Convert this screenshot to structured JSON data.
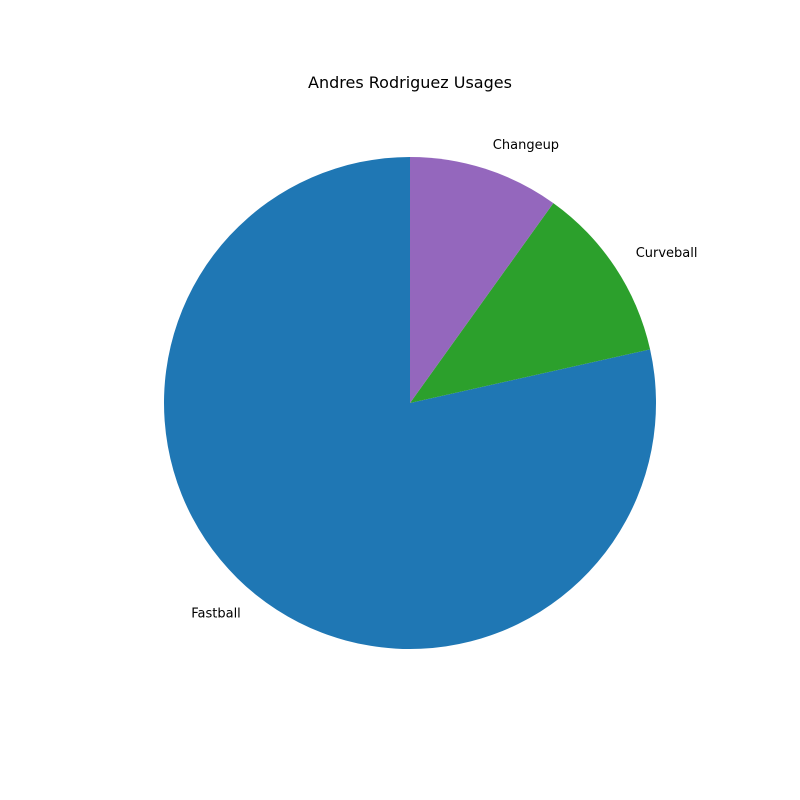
{
  "chart_data": {
    "type": "pie",
    "title": "Andres Rodriguez Usages",
    "start_angle_deg": 90,
    "direction": "counterclockwise",
    "legend": "none",
    "slices": [
      {
        "label": "Fastball",
        "value": 78.5,
        "color": "#1f77b4"
      },
      {
        "label": "Curveball",
        "value": 11.6,
        "color": "#2ca02c"
      },
      {
        "label": "Changeup",
        "value": 9.9,
        "color": "#9467bd"
      }
    ]
  }
}
